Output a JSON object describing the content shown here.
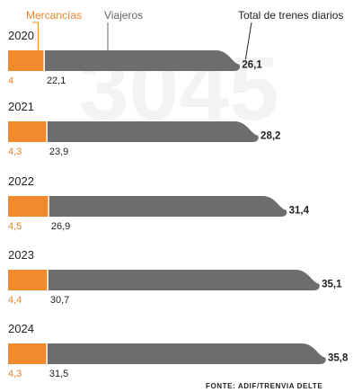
{
  "colors": {
    "freight": "#f08a2c",
    "passenger": "#6d6d6d",
    "freight_text": "#e8832a",
    "text": "#222222",
    "muted": "#666666",
    "watermark": "#f3f3f3"
  },
  "watermark_text": "3045",
  "source_text": "FONTE: ADIF/TRENVIA DELTE",
  "chart_data": {
    "type": "bar",
    "orientation": "horizontal",
    "stacked": true,
    "categories": [
      "2020",
      "2021",
      "2022",
      "2023",
      "2024"
    ],
    "series": [
      {
        "name": "Mercancías",
        "values": [
          4,
          4.3,
          4.5,
          4.4,
          4.3
        ],
        "labels": [
          "4",
          "4,3",
          "4,5",
          "4,4",
          "4,3"
        ]
      },
      {
        "name": "Viajeros",
        "values": [
          22.1,
          23.9,
          26.9,
          30.7,
          31.5
        ],
        "labels": [
          "22,1",
          "23,9",
          "26,9",
          "30,7",
          "31,5"
        ]
      }
    ],
    "totals": {
      "name": "Total de trenes diarios",
      "values": [
        26.1,
        28.2,
        31.4,
        35.1,
        35.8
      ],
      "labels": [
        "26,1",
        "28,2",
        "31,4",
        "35,1",
        "35,8"
      ]
    },
    "xlim": [
      0,
      35.8
    ]
  }
}
